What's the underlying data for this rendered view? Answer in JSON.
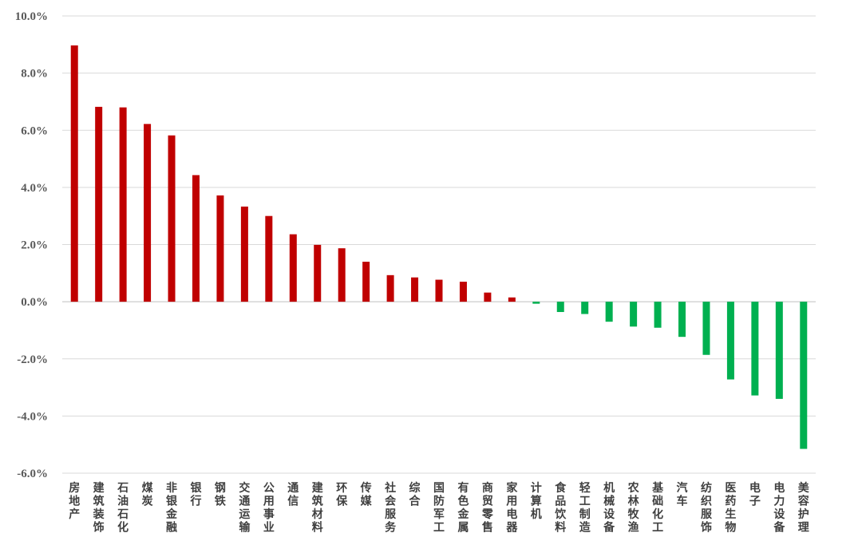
{
  "chart_data": {
    "type": "bar",
    "title": "",
    "xlabel": "",
    "ylabel": "",
    "ylim": [
      -6,
      10
    ],
    "yticks": [
      -6,
      -4,
      -2,
      0,
      2,
      4,
      6,
      8,
      10
    ],
    "ytick_labels": [
      "-6.0%",
      "-4.0%",
      "-2.0%",
      "0.0%",
      "2.0%",
      "4.0%",
      "6.0%",
      "8.0%",
      "10.0%"
    ],
    "grid": true,
    "legend": "none",
    "colors": {
      "positive": "#c00000",
      "negative": "#00b050"
    },
    "categories": [
      "房地产",
      "建筑装饰",
      "石油石化",
      "煤炭",
      "非银金融",
      "银行",
      "钢铁",
      "交通运输",
      "公用事业",
      "通信",
      "建筑材料",
      "环保",
      "传媒",
      "社会服务",
      "综合",
      "国防军工",
      "有色金属",
      "商贸零售",
      "家用电器",
      "计算机",
      "食品饮料",
      "轻工制造",
      "机械设备",
      "农林牧渔",
      "基础化工",
      "汽车",
      "纺织服饰",
      "医药生物",
      "电子",
      "电力设备",
      "美容护理"
    ],
    "values": [
      8.97,
      6.82,
      6.8,
      6.22,
      5.82,
      4.43,
      3.72,
      3.33,
      3.0,
      2.36,
      1.99,
      1.87,
      1.4,
      0.93,
      0.85,
      0.77,
      0.7,
      0.32,
      0.15,
      -0.07,
      -0.36,
      -0.43,
      -0.7,
      -0.87,
      -0.91,
      -1.23,
      -1.86,
      -2.72,
      -3.28,
      -3.4,
      -5.15
    ]
  }
}
